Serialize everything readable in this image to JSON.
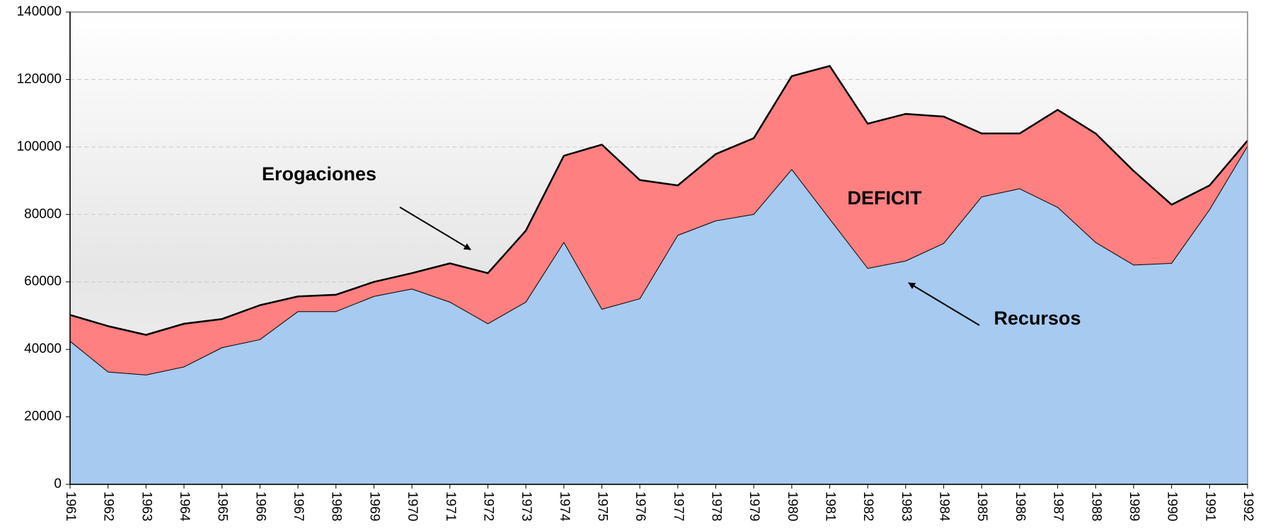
{
  "chart_data": {
    "type": "area",
    "categories": [
      "1961",
      "1962",
      "1963",
      "1964",
      "1965",
      "1966",
      "1967",
      "1968",
      "1969",
      "1970",
      "1971",
      "1972",
      "1973",
      "1974",
      "1975",
      "1976",
      "1977",
      "1978",
      "1979",
      "1980",
      "1981",
      "1982",
      "1983",
      "1984",
      "1985",
      "1986",
      "1987",
      "1988",
      "1989",
      "1990",
      "1991",
      "1992"
    ],
    "series": [
      {
        "name": "Erogaciones",
        "color": "#ff8080",
        "values": [
          50200,
          46900,
          44300,
          47600,
          49000,
          53100,
          55700,
          56200,
          60000,
          62600,
          65500,
          62600,
          75200,
          97400,
          100700,
          90200,
          88600,
          97900,
          102600,
          121000,
          124000,
          106900,
          109800,
          109000,
          104000,
          104000,
          111000,
          104000,
          92900,
          82900,
          88600,
          101900
        ]
      },
      {
        "name": "Recursos",
        "color": "#a6caf0",
        "values": [
          42400,
          33300,
          32400,
          34800,
          40500,
          42900,
          51200,
          51200,
          55700,
          57900,
          54000,
          47600,
          54000,
          71700,
          51900,
          55000,
          73800,
          78100,
          80000,
          93300,
          78600,
          64000,
          66200,
          71400,
          85200,
          87600,
          82100,
          71700,
          65000,
          65500,
          81400,
          100200
        ]
      }
    ],
    "annotations": [
      "DEFICIT"
    ],
    "ylim": [
      0,
      140000
    ],
    "yticks": [
      0,
      20000,
      40000,
      60000,
      80000,
      100000,
      120000,
      140000
    ],
    "grid": true
  }
}
